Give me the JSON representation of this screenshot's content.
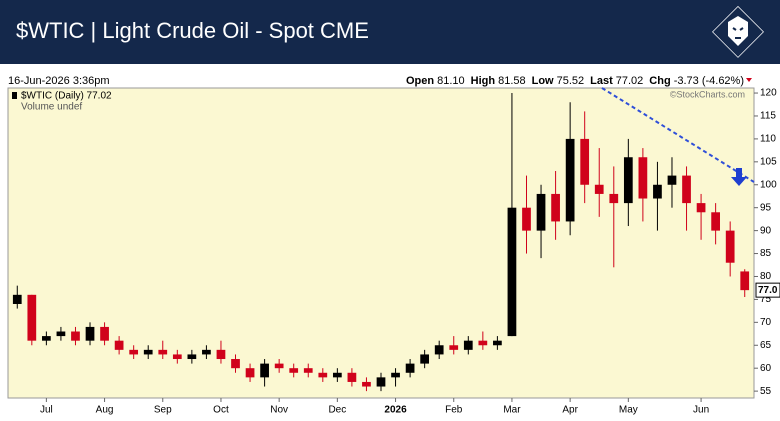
{
  "header": {
    "title": "$WTIC | Light Crude Oil - Spot CME",
    "datetime": "16-Jun-2026 3:36pm",
    "quote": [
      [
        "Open",
        "81.10"
      ],
      [
        "High",
        "81.58"
      ],
      [
        "Low",
        "75.52"
      ],
      [
        "Last",
        "77.02"
      ],
      [
        "Chg",
        "-3.73 (-4.62%)"
      ]
    ]
  },
  "chart_data": {
    "type": "candlestick",
    "legend": "$WTIC (Daily) 77.02",
    "volume_note": "Volume undef",
    "watermark": "©StockCharts.com",
    "last_label": "77.0",
    "categories": [
      null,
      null,
      "Jul",
      null,
      null,
      null,
      "Aug",
      null,
      null,
      null,
      "Sep",
      null,
      null,
      null,
      "Oct",
      null,
      null,
      null,
      "Nov",
      null,
      null,
      null,
      "Dec",
      null,
      null,
      null,
      "2026",
      null,
      null,
      null,
      "Feb",
      null,
      null,
      null,
      "Mar",
      null,
      null,
      null,
      "Apr",
      null,
      null,
      null,
      "May",
      null,
      null,
      null,
      null,
      "Jun",
      null,
      null,
      null
    ],
    "open": [
      74,
      76,
      66,
      67,
      68,
      66,
      69,
      66,
      64,
      63,
      64,
      63,
      62,
      63,
      64,
      62,
      60,
      58,
      61,
      60,
      60,
      59,
      58,
      59,
      57,
      56,
      58,
      59,
      61,
      63,
      65,
      64,
      66,
      65,
      67,
      95,
      90,
      98,
      92,
      110,
      100,
      98,
      96,
      106,
      97,
      100,
      102,
      96,
      94,
      90,
      81.1
    ],
    "high": [
      78,
      76,
      68,
      69,
      69,
      70,
      70,
      67,
      65,
      65,
      66,
      64,
      64,
      65,
      66,
      63,
      61,
      62,
      62,
      61,
      61,
      60,
      60,
      60,
      58,
      59,
      60,
      62,
      64,
      66,
      67,
      67,
      68,
      67,
      120,
      102,
      100,
      103,
      118,
      116,
      108,
      104,
      110,
      108,
      105,
      106,
      104,
      98,
      96,
      92,
      81.58
    ],
    "low": [
      73,
      65,
      65,
      66,
      65,
      65,
      65,
      63,
      62,
      62,
      62,
      61,
      61,
      62,
      61,
      59,
      57,
      56,
      59,
      58,
      58,
      57,
      57,
      56,
      55,
      55,
      56,
      58,
      60,
      62,
      63,
      63,
      64,
      64,
      67,
      85,
      84,
      88,
      89,
      96,
      93,
      82,
      91,
      92,
      90,
      95,
      90,
      88,
      87,
      80,
      75.52
    ],
    "close": [
      76,
      66,
      67,
      68,
      66,
      69,
      66,
      64,
      63,
      64,
      63,
      62,
      63,
      64,
      62,
      60,
      58,
      61,
      60,
      59,
      59,
      58,
      59,
      57,
      56,
      58,
      59,
      61,
      63,
      65,
      64,
      66,
      65,
      66,
      95,
      90,
      98,
      92,
      110,
      100,
      98,
      96,
      106,
      97,
      100,
      102,
      96,
      94,
      90,
      83,
      77.02
    ],
    "up_color": "#000000",
    "down_color": "#d0021b",
    "ylim": [
      53.5,
      121.1
    ],
    "yticks": [
      55,
      60,
      65,
      70,
      75,
      80,
      85,
      90,
      95,
      100,
      105,
      110,
      115,
      120
    ]
  }
}
